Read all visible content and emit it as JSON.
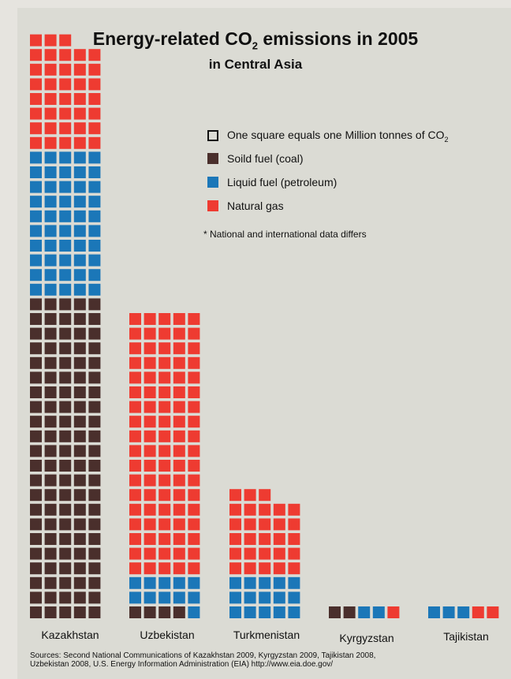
{
  "title": {
    "main_prefix": "Energy-related CO",
    "main_sub": "2",
    "main_suffix": " emissions in 2005",
    "subtitle": "in Central Asia"
  },
  "legend": {
    "unit_prefix": "One square equals one Million tonnes of CO",
    "unit_sub": "2",
    "items": [
      {
        "label": "Soild fuel (coal)",
        "color": "#4a2f2c"
      },
      {
        "label": "Liquid fuel (petroleum)",
        "color": "#1b77b8"
      },
      {
        "label": "Natural gas",
        "color": "#ee3b31"
      }
    ]
  },
  "note": "* National and international data differs",
  "sources": {
    "line1": "Sources: Second National Communications of Kazakhstan 2009, Kyrgyzstan 2009, Tajikistan 2008,",
    "line2": "Uzbekistan 2008, U.S. Energy Information Administration (EIA)  http://www.eia.doe.gov/"
  },
  "chart_data": {
    "type": "bar",
    "stacked": true,
    "unit": "Million tonnes of CO2",
    "categories": [
      "Kazakhstan",
      "Uzbekistan",
      "Turkmenistan",
      "Kyrgyzstan",
      "Tajikistan"
    ],
    "series": [
      {
        "name": "Soild fuel (coal)",
        "color": "#4a2f2c",
        "values": [
          110,
          4,
          0,
          2,
          0
        ]
      },
      {
        "name": "Liquid fuel (petroleum)",
        "color": "#1b77b8",
        "values": [
          50,
          11,
          15,
          2,
          3
        ]
      },
      {
        "name": "Natural gas",
        "color": "#ee3b31",
        "values": [
          38,
          90,
          28,
          1,
          2
        ]
      }
    ]
  }
}
